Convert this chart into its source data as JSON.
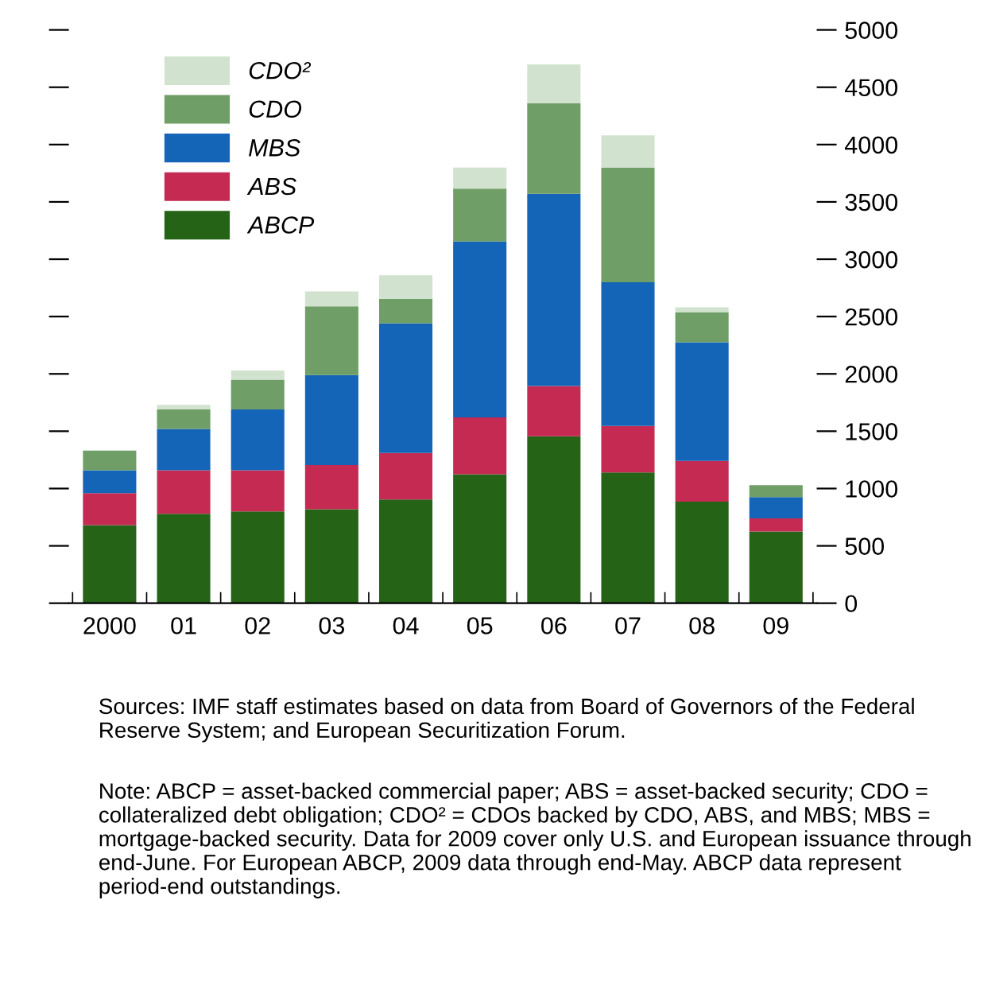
{
  "chart_data": {
    "type": "bar",
    "stacked": true,
    "categories": [
      "2000",
      "01",
      "02",
      "03",
      "04",
      "05",
      "06",
      "07",
      "08",
      "09"
    ],
    "series": [
      {
        "name": "ABCP",
        "color": "#256317",
        "values": [
          680,
          780,
          800,
          820,
          905,
          1125,
          1455,
          1140,
          885,
          625
        ]
      },
      {
        "name": "ABS",
        "color": "#c42a52",
        "values": [
          280,
          380,
          360,
          385,
          405,
          495,
          440,
          405,
          355,
          115
        ]
      },
      {
        "name": "MBS",
        "color": "#1464b8",
        "values": [
          200,
          360,
          530,
          785,
          1130,
          1535,
          1675,
          1255,
          1035,
          185
        ]
      },
      {
        "name": "CDO",
        "color": "#6f9e66",
        "values": [
          170,
          170,
          260,
          600,
          215,
          460,
          790,
          1000,
          260,
          105
        ]
      },
      {
        "name": "CDO²",
        "color": "#d1e3cf",
        "values": [
          null,
          40,
          80,
          130,
          205,
          185,
          340,
          280,
          45,
          null
        ]
      }
    ],
    "ylim": [
      0,
      5000
    ],
    "yticks": [
      0,
      500,
      1000,
      1500,
      2000,
      2500,
      3000,
      3500,
      4000,
      4500,
      5000
    ],
    "grid": false,
    "legend": "top left",
    "annotations": [
      "Sources: IMF staff estimates based on data from Board of Governors of the Federal Reserve System; and European Securitization Forum.",
      "Note: ABCP = asset-backed commercial paper; ABS = asset-backed security; CDO = collateralized debt obligation; CDO² = CDOs backed by CDO, ABS, and MBS; MBS = mortgage-backed security. Data for 2009 cover only U.S. and European issuance through end-June. For European ABCP, 2009 data through end-May. ABCP data represent period-end outstandings."
    ]
  }
}
